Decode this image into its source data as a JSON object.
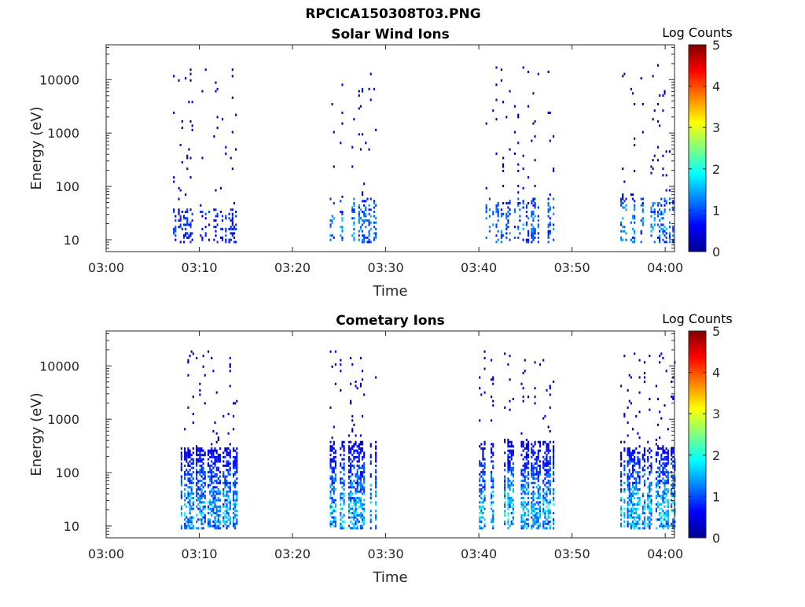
{
  "figure": {
    "filename": "RPCICA150308T03.PNG"
  },
  "chart_data": [
    {
      "type": "heatmap",
      "title": "Solar Wind Ions",
      "xlabel": "Time",
      "ylabel": "Energy (eV)",
      "x_ticks": [
        "03:00",
        "03:10",
        "03:20",
        "03:30",
        "03:40",
        "03:50",
        "04:00"
      ],
      "xlim": [
        "03:00",
        "04:01"
      ],
      "y_scale": "log",
      "y_ticks": [
        "10",
        "100",
        "1000",
        "10000"
      ],
      "ylim": [
        6,
        45000
      ],
      "colorbar": {
        "label": "Log Counts",
        "range": [
          0,
          5
        ],
        "ticks": [
          "0",
          "1",
          "2",
          "3",
          "4",
          "5"
        ],
        "colormap": "jet"
      },
      "bursts": [
        {
          "start": "03:07",
          "end": "03:14",
          "low_energy_range": [
            9,
            40
          ],
          "max_level": 1.2,
          "density": "sparse"
        },
        {
          "start": "03:24",
          "end": "03:29",
          "low_energy_range": [
            9,
            60
          ],
          "max_level": 1.8,
          "density": "sparse"
        },
        {
          "start": "03:40",
          "end": "03:48",
          "low_energy_range": [
            9,
            60
          ],
          "max_level": 1.6,
          "density": "sparse"
        },
        {
          "start": "03:55",
          "end": "04:01",
          "low_energy_range": [
            9,
            60
          ],
          "max_level": 1.8,
          "density": "sparse"
        }
      ]
    },
    {
      "type": "heatmap",
      "title": "Cometary Ions",
      "xlabel": "Time",
      "ylabel": "Energy (eV)",
      "x_ticks": [
        "03:00",
        "03:10",
        "03:20",
        "03:30",
        "03:40",
        "03:50",
        "04:00"
      ],
      "xlim": [
        "03:00",
        "04:01"
      ],
      "y_scale": "log",
      "y_ticks": [
        "10",
        "100",
        "1000",
        "10000"
      ],
      "ylim": [
        6,
        45000
      ],
      "colorbar": {
        "label": "Log Counts",
        "range": [
          0,
          5
        ],
        "ticks": [
          "0",
          "1",
          "2",
          "3",
          "4",
          "5"
        ],
        "colormap": "jet"
      },
      "bursts": [
        {
          "start": "03:08",
          "end": "03:14",
          "low_energy_range": [
            9,
            300
          ],
          "max_level": 2.0,
          "density": "dense"
        },
        {
          "start": "03:24",
          "end": "03:29",
          "low_energy_range": [
            9,
            400
          ],
          "max_level": 2.2,
          "density": "dense"
        },
        {
          "start": "03:40",
          "end": "03:48",
          "low_energy_range": [
            9,
            400
          ],
          "max_level": 2.2,
          "density": "dense"
        },
        {
          "start": "03:55",
          "end": "04:01",
          "low_energy_range": [
            9,
            300
          ],
          "max_level": 2.2,
          "density": "dense"
        }
      ]
    }
  ]
}
